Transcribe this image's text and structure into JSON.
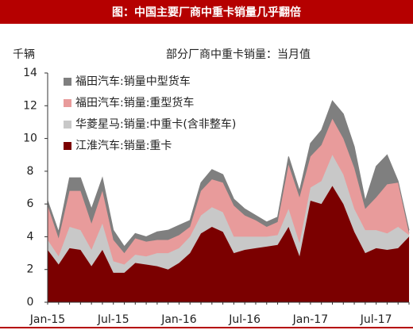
{
  "chart_data": {
    "type": "stacked_area",
    "title": "图：中国主要厂商中重卡销量几乎翻倍",
    "subtitle": "部分厂商中重卡销量：当月值",
    "y_label": "千辆",
    "categories": [
      "Jan-15",
      null,
      null,
      null,
      null,
      null,
      "Jul-15",
      null,
      null,
      null,
      null,
      null,
      "Jan-16",
      null,
      null,
      null,
      null,
      null,
      "Jul-16",
      null,
      null,
      null,
      null,
      null,
      "Jan-17",
      null,
      null,
      null,
      null,
      null,
      "Jul-17",
      null,
      null,
      null
    ],
    "series": [
      {
        "name": "江淮汽车:销量:重卡",
        "color": "#7b0000",
        "values": [
          3.2,
          2.3,
          3.3,
          3.2,
          2.2,
          3.2,
          1.8,
          1.8,
          2.4,
          2.3,
          2.2,
          2.0,
          2.4,
          3.0,
          4.2,
          4.6,
          4.3,
          3.0,
          3.2,
          3.3,
          3.4,
          3.5,
          4.6,
          2.8,
          6.2,
          6.0,
          7.1,
          6.0,
          4.3,
          3.0,
          3.3,
          3.2,
          3.3,
          4.0
        ]
      },
      {
        "name": "华菱星马:销量:中重卡(含非整车)",
        "color": "#c8c8c8",
        "values": [
          0.6,
          0.5,
          1.3,
          1.2,
          1.0,
          1.6,
          0.7,
          0.5,
          0.5,
          0.5,
          0.8,
          1.0,
          0.9,
          1.0,
          1.1,
          1.2,
          1.2,
          1.0,
          0.8,
          0.7,
          0.6,
          0.6,
          1.1,
          0.8,
          0.8,
          1.4,
          1.9,
          1.8,
          1.4,
          1.4,
          1.1,
          1.0,
          1.3,
          0.1
        ]
      },
      {
        "name": "福田汽车:销量:重型货车",
        "color": "#e89b9b",
        "values": [
          2.1,
          1.1,
          2.2,
          2.4,
          1.6,
          2.0,
          1.3,
          0.7,
          1.0,
          0.9,
          0.8,
          0.8,
          0.8,
          0.6,
          1.5,
          1.7,
          1.8,
          1.9,
          1.3,
          1.0,
          0.6,
          0.8,
          2.7,
          2.8,
          1.9,
          2.2,
          2.2,
          2.2,
          2.5,
          1.3,
          2.0,
          3.0,
          2.7,
          0.1
        ]
      },
      {
        "name": "福田汽车:销量中型货车",
        "color": "#7f7f7f",
        "values": [
          0.3,
          0.4,
          0.8,
          0.8,
          0.9,
          0.8,
          0.6,
          0.4,
          0.3,
          0.3,
          0.5,
          0.6,
          0.6,
          0.4,
          0.5,
          0.6,
          0.5,
          0.4,
          0.4,
          0.3,
          0.3,
          0.3,
          0.5,
          0.4,
          0.8,
          0.9,
          1.1,
          1.5,
          1.3,
          0.5,
          1.9,
          1.8,
          0.1,
          0.2
        ]
      }
    ],
    "ylim": [
      0,
      14
    ],
    "yticks": [
      0,
      2,
      4,
      6,
      8,
      10,
      12,
      14
    ],
    "legend": "upper left",
    "title_bar_color": "#b50000"
  }
}
